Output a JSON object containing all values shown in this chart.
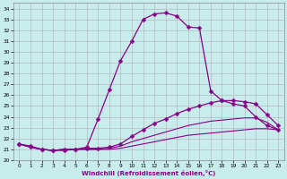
{
  "xlabel": "Windchill (Refroidissement éolien,°C)",
  "background_color": "#c8ecec",
  "grid_color": "#b0b0b0",
  "line_color": "#880088",
  "xlim": [
    -0.5,
    23.5
  ],
  "ylim": [
    20.0,
    34.5
  ],
  "xticks": [
    0,
    1,
    2,
    3,
    4,
    5,
    6,
    7,
    8,
    9,
    10,
    11,
    12,
    13,
    14,
    15,
    16,
    17,
    18,
    19,
    20,
    21,
    22,
    23
  ],
  "yticks": [
    20,
    21,
    22,
    23,
    24,
    25,
    26,
    27,
    28,
    29,
    30,
    31,
    32,
    33,
    34
  ],
  "curve1_x": [
    0,
    1,
    2,
    3,
    4,
    5,
    6,
    7,
    8,
    9,
    10,
    11,
    12,
    13,
    14,
    15,
    16,
    17,
    18,
    19,
    20,
    21,
    22,
    23
  ],
  "curve1_y": [
    21.5,
    21.3,
    21.0,
    20.9,
    20.9,
    21.0,
    21.2,
    23.8,
    26.5,
    29.2,
    31.0,
    33.0,
    33.5,
    33.6,
    33.3,
    32.3,
    32.2,
    26.4,
    25.5,
    25.2,
    25.0,
    24.0,
    23.2,
    22.8
  ],
  "curve2_x": [
    0,
    1,
    2,
    3,
    4,
    5,
    6,
    7,
    8,
    9,
    10,
    11,
    12,
    13,
    14,
    15,
    16,
    17,
    18,
    19,
    20,
    21,
    22,
    23
  ],
  "curve2_y": [
    21.5,
    21.2,
    21.0,
    20.9,
    21.0,
    21.0,
    21.1,
    21.1,
    21.2,
    21.5,
    22.2,
    22.8,
    23.4,
    23.8,
    24.3,
    24.7,
    25.0,
    25.3,
    25.5,
    25.5,
    25.4,
    25.2,
    24.2,
    23.2
  ],
  "curve3_x": [
    0,
    1,
    2,
    3,
    4,
    5,
    6,
    7,
    8,
    9,
    10,
    11,
    12,
    13,
    14,
    15,
    16,
    17,
    18,
    19,
    20,
    21,
    22,
    23
  ],
  "curve3_y": [
    21.5,
    21.2,
    21.0,
    20.9,
    21.0,
    21.0,
    21.0,
    21.0,
    21.1,
    21.3,
    21.7,
    22.0,
    22.3,
    22.6,
    22.9,
    23.2,
    23.4,
    23.6,
    23.7,
    23.8,
    23.9,
    23.9,
    23.5,
    22.8
  ],
  "curve4_x": [
    0,
    1,
    2,
    3,
    4,
    5,
    6,
    7,
    8,
    9,
    10,
    11,
    12,
    13,
    14,
    15,
    16,
    17,
    18,
    19,
    20,
    21,
    22,
    23
  ],
  "curve4_y": [
    21.5,
    21.2,
    21.0,
    20.9,
    21.0,
    21.0,
    21.0,
    21.0,
    21.0,
    21.1,
    21.3,
    21.5,
    21.7,
    21.9,
    22.1,
    22.3,
    22.4,
    22.5,
    22.6,
    22.7,
    22.8,
    22.9,
    22.9,
    22.8
  ]
}
